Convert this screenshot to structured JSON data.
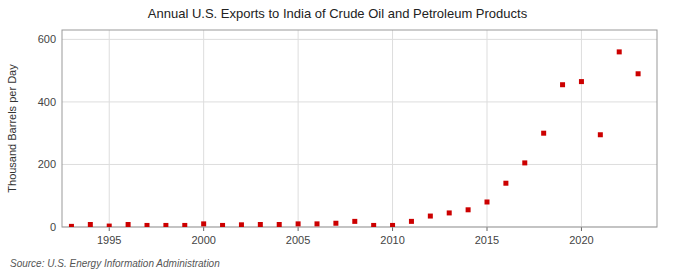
{
  "chart_data": {
    "type": "scatter",
    "title": "Annual U.S. Exports to India of Crude Oil and Petroleum Products",
    "ylabel": "Thousand Barrels per Day",
    "annotations": [
      "Source: U.S. Energy Information Administration"
    ],
    "x": [
      1993,
      1994,
      1995,
      1996,
      1997,
      1998,
      1999,
      2000,
      2001,
      2002,
      2003,
      2004,
      2005,
      2006,
      2007,
      2008,
      2009,
      2010,
      2011,
      2012,
      2013,
      2014,
      2015,
      2016,
      2017,
      2018,
      2019,
      2020,
      2021,
      2022,
      2023
    ],
    "values": [
      2,
      8,
      3,
      8,
      5,
      5,
      5,
      10,
      5,
      7,
      8,
      8,
      10,
      10,
      12,
      18,
      5,
      5,
      18,
      35,
      45,
      55,
      80,
      140,
      205,
      300,
      455,
      465,
      295,
      560,
      490
    ],
    "color": "#cc0000",
    "marker": "square",
    "grid": true,
    "xlim": [
      1992.5,
      2024
    ],
    "xticks": [
      1995,
      2000,
      2005,
      2010,
      2015,
      2020
    ],
    "ylim": [
      0,
      630
    ],
    "yticks": [
      0,
      200,
      400,
      600
    ]
  }
}
